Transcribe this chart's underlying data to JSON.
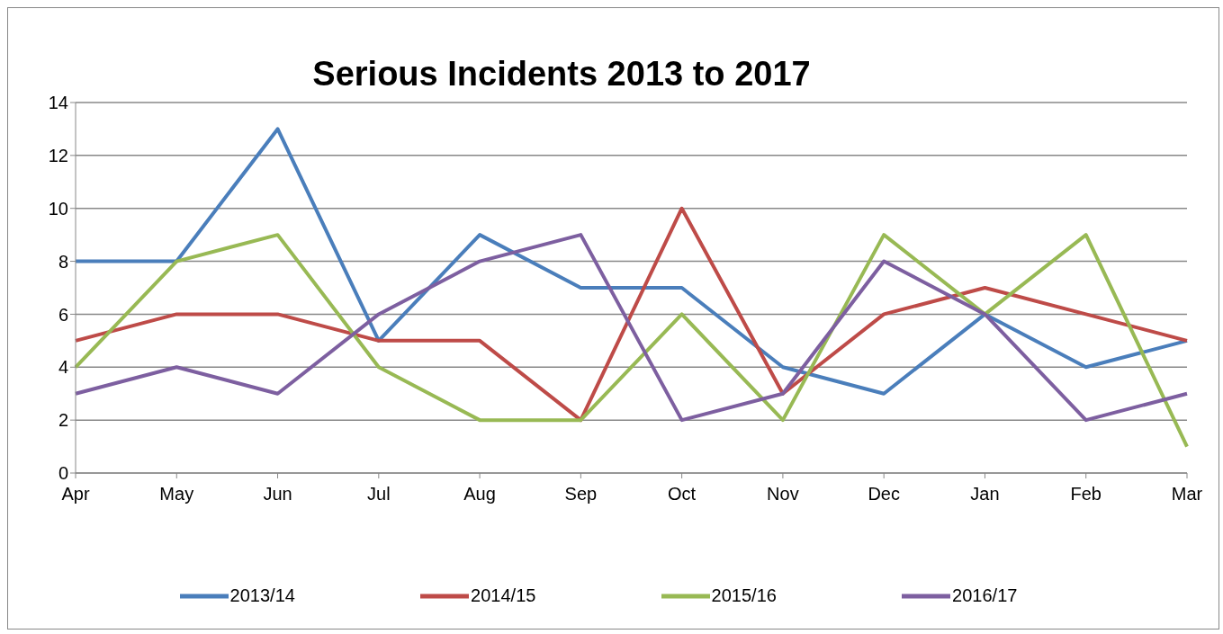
{
  "chart_data": {
    "type": "line",
    "title": "Serious Incidents 2013 to 2017",
    "categories": [
      "Apr",
      "May",
      "Jun",
      "Jul",
      "Aug",
      "Sep",
      "Oct",
      "Nov",
      "Dec",
      "Jan",
      "Feb",
      "Mar"
    ],
    "series": [
      {
        "name": "2013/14",
        "color": "#4a7ebb",
        "values": [
          8,
          8,
          13,
          5,
          9,
          7,
          7,
          4,
          3,
          6,
          4,
          5
        ]
      },
      {
        "name": "2014/15",
        "color": "#be4b48",
        "values": [
          5,
          6,
          6,
          5,
          5,
          2,
          10,
          3,
          6,
          7,
          6,
          5
        ]
      },
      {
        "name": "2015/16",
        "color": "#98b954",
        "values": [
          4,
          8,
          9,
          4,
          2,
          2,
          6,
          2,
          9,
          6,
          9,
          1
        ]
      },
      {
        "name": "2016/17",
        "color": "#7d5fa0",
        "values": [
          3,
          4,
          3,
          6,
          8,
          9,
          2,
          3,
          8,
          6,
          2,
          3
        ]
      }
    ],
    "ylim": [
      0,
      14
    ],
    "yticks": [
      0,
      2,
      4,
      6,
      8,
      10,
      12,
      14
    ],
    "grid": "y",
    "legend": "bottom",
    "marker": "none",
    "line_style": "solid"
  }
}
